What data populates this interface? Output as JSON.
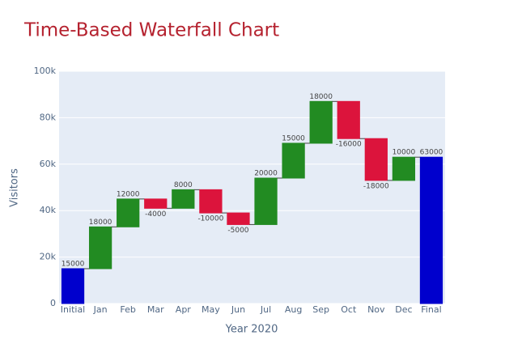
{
  "chart_data": {
    "type": "waterfall",
    "title": "Time-Based Waterfall Chart",
    "xlabel": "Year 2020",
    "ylabel": "Visitors",
    "categories": [
      "Initial",
      "Jan",
      "Feb",
      "Mar",
      "Apr",
      "May",
      "Jun",
      "Jul",
      "Aug",
      "Sep",
      "Oct",
      "Nov",
      "Dec",
      "Final"
    ],
    "values": [
      15000,
      18000,
      12000,
      -4000,
      8000,
      -10000,
      -5000,
      20000,
      15000,
      18000,
      -16000,
      -18000,
      10000,
      63000
    ],
    "measure": [
      "absolute",
      "relative",
      "relative",
      "relative",
      "relative",
      "relative",
      "relative",
      "relative",
      "relative",
      "relative",
      "relative",
      "relative",
      "relative",
      "total"
    ],
    "colors": {
      "increasing": "#228b22",
      "decreasing": "#dc143c",
      "totals": "#0000cd"
    },
    "ylim": [
      0,
      100000
    ],
    "yticks": [
      0,
      {
        "value": 20000,
        "label": "20k"
      },
      {
        "value": 40000,
        "label": "40k"
      },
      {
        "value": 60000,
        "label": "60k"
      },
      {
        "value": 80000,
        "label": "80k"
      },
      {
        "value": 100000,
        "label": "100k"
      }
    ],
    "grid": true
  }
}
